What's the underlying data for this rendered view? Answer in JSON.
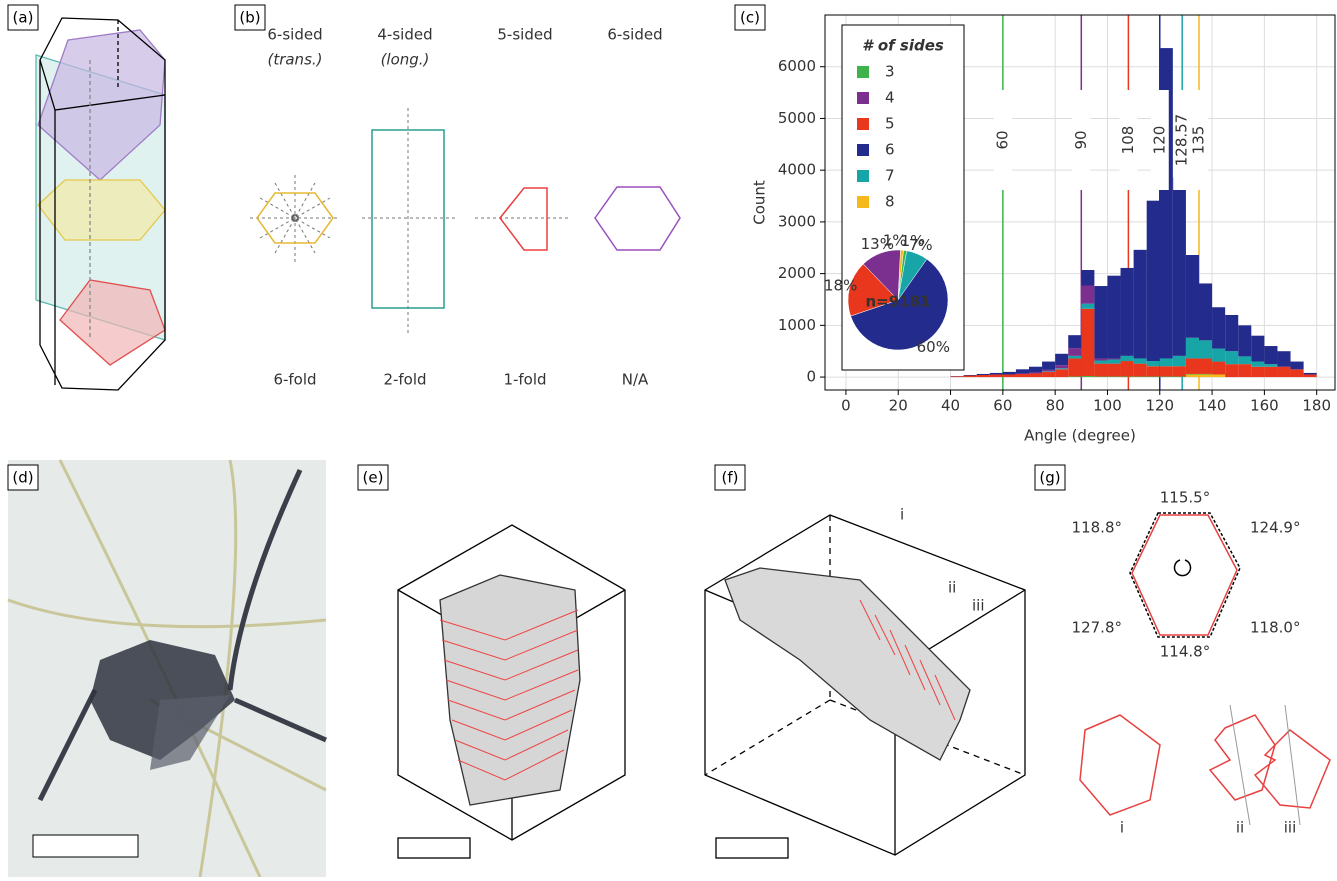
{
  "panel_labels": [
    "(a)",
    "(b)",
    "(c)",
    "(d)",
    "(e)",
    "(f)",
    "(g)"
  ],
  "panel_b": {
    "shapes": [
      {
        "title": "6-sided",
        "note": "(trans.)",
        "symmetry": "6-fold"
      },
      {
        "title": "4-sided",
        "note": "(long.)",
        "symmetry": "2-fold"
      },
      {
        "title": "5-sided",
        "symmetry": "1-fold"
      },
      {
        "title": "6-sided",
        "symmetry": "N/A"
      }
    ]
  },
  "chart_data": {
    "type": "histogram",
    "xlabel": "Angle (degree)",
    "ylabel": "Count",
    "legend_title": "# of sides",
    "legend": "upper left",
    "grid": true,
    "xlim": [
      -8,
      187
    ],
    "ylim": [
      -250,
      7000
    ],
    "xticks": [
      0,
      20,
      40,
      60,
      80,
      100,
      120,
      140,
      160,
      180
    ],
    "yticks": [
      0,
      1000,
      2000,
      3000,
      4000,
      5000,
      6000
    ],
    "bins": [
      40,
      45,
      50,
      55,
      60,
      65,
      70,
      75,
      80,
      85,
      90,
      95,
      100,
      105,
      110,
      115,
      120,
      125,
      130,
      135,
      140,
      145,
      150,
      155,
      160,
      165,
      170,
      175,
      180
    ],
    "series": [
      {
        "name": "3",
        "color": "#3cb44b",
        "values": [
          0,
          0,
          0,
          0,
          0,
          0,
          0,
          0,
          0,
          10,
          20,
          10,
          10,
          10,
          10,
          10,
          10,
          10,
          10,
          10,
          0,
          0,
          0,
          0,
          0,
          0,
          0,
          0
        ]
      },
      {
        "name": "4",
        "color": "#7b2f8e",
        "values": [
          0,
          0,
          0,
          0,
          0,
          10,
          20,
          30,
          60,
          150,
          350,
          40,
          20,
          0,
          0,
          0,
          0,
          0,
          0,
          0,
          0,
          0,
          0,
          0,
          0,
          0,
          0,
          0
        ]
      },
      {
        "name": "5",
        "color": "#e8371c",
        "values": [
          15,
          30,
          40,
          50,
          50,
          60,
          70,
          100,
          150,
          350,
          1300,
          250,
          250,
          300,
          250,
          200,
          200,
          200,
          300,
          300,
          250,
          250,
          250,
          200,
          200,
          200,
          150,
          50
        ]
      },
      {
        "name": "6",
        "color": "#232b8c",
        "values": [
          5,
          10,
          20,
          30,
          50,
          80,
          110,
          160,
          220,
          250,
          300,
          1400,
          1600,
          1700,
          2100,
          3100,
          6000,
          3450,
          1600,
          1100,
          800,
          700,
          600,
          500,
          350,
          300,
          150,
          30
        ]
      },
      {
        "name": "7",
        "color": "#17a5a8",
        "values": [
          0,
          0,
          0,
          0,
          0,
          0,
          0,
          10,
          20,
          50,
          100,
          60,
          80,
          100,
          100,
          100,
          150,
          200,
          400,
          350,
          250,
          250,
          150,
          100,
          50,
          0,
          0,
          0
        ]
      },
      {
        "name": "8",
        "color": "#f5b91b",
        "values": [
          0,
          0,
          0,
          0,
          0,
          0,
          0,
          0,
          0,
          0,
          0,
          0,
          0,
          0,
          0,
          0,
          0,
          0,
          50,
          50,
          50,
          0,
          0,
          0,
          0,
          0,
          0,
          0
        ]
      }
    ],
    "reference_lines": [
      {
        "value": 60,
        "color": "#3cb44b"
      },
      {
        "value": 90,
        "color": "#7b2f8e"
      },
      {
        "value": 108,
        "color": "#e8371c"
      },
      {
        "value": 120,
        "color": "#232b8c"
      },
      {
        "value": 128.57,
        "color": "#17a5a8"
      },
      {
        "value": 135,
        "color": "#f5b91b"
      }
    ],
    "pie": {
      "center_label": "n=9181",
      "values": [
        1,
        1,
        7,
        60,
        18,
        13
      ],
      "value_labels": [
        "1%",
        "1%",
        "7%",
        "60%",
        "18%",
        "13%"
      ],
      "colors": [
        "#f5b91b",
        "#3cb44b",
        "#17a5a8",
        "#232b8c",
        "#e8371c",
        "#7b2f8e"
      ]
    }
  },
  "panel_f": {
    "markers": [
      "i",
      "ii",
      "iii"
    ]
  },
  "panel_g": {
    "angles": [
      "115.5°",
      "118.8°",
      "124.9°",
      "127.8°",
      "118.0°",
      "114.8°"
    ],
    "cross_sections": [
      "i",
      "ii",
      "iii"
    ]
  }
}
